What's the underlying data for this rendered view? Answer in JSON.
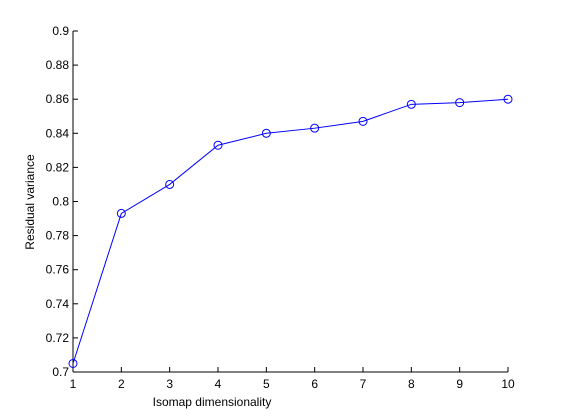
{
  "chart_data": {
    "type": "line",
    "x_label": "Isomap dimensionality",
    "y_label": "Residual variance",
    "x": [
      1,
      2,
      3,
      4,
      5,
      6,
      7,
      8,
      9,
      10
    ],
    "series": [
      {
        "color": "#0000ff",
        "values": [
          0.705,
          0.793,
          0.81,
          0.833,
          0.84,
          0.843,
          0.847,
          0.857,
          0.858,
          0.86
        ]
      }
    ],
    "xlim": [
      1,
      10
    ],
    "xticks": [
      1,
      2,
      3,
      4,
      5,
      6,
      7,
      8,
      9,
      10
    ],
    "ylim": [
      0.7,
      0.9
    ],
    "yticks": [
      0.7,
      0.72,
      0.74,
      0.76,
      0.78,
      0.8,
      0.82,
      0.84,
      0.86,
      0.88,
      0.9
    ],
    "marker": "circle",
    "grid": false
  }
}
